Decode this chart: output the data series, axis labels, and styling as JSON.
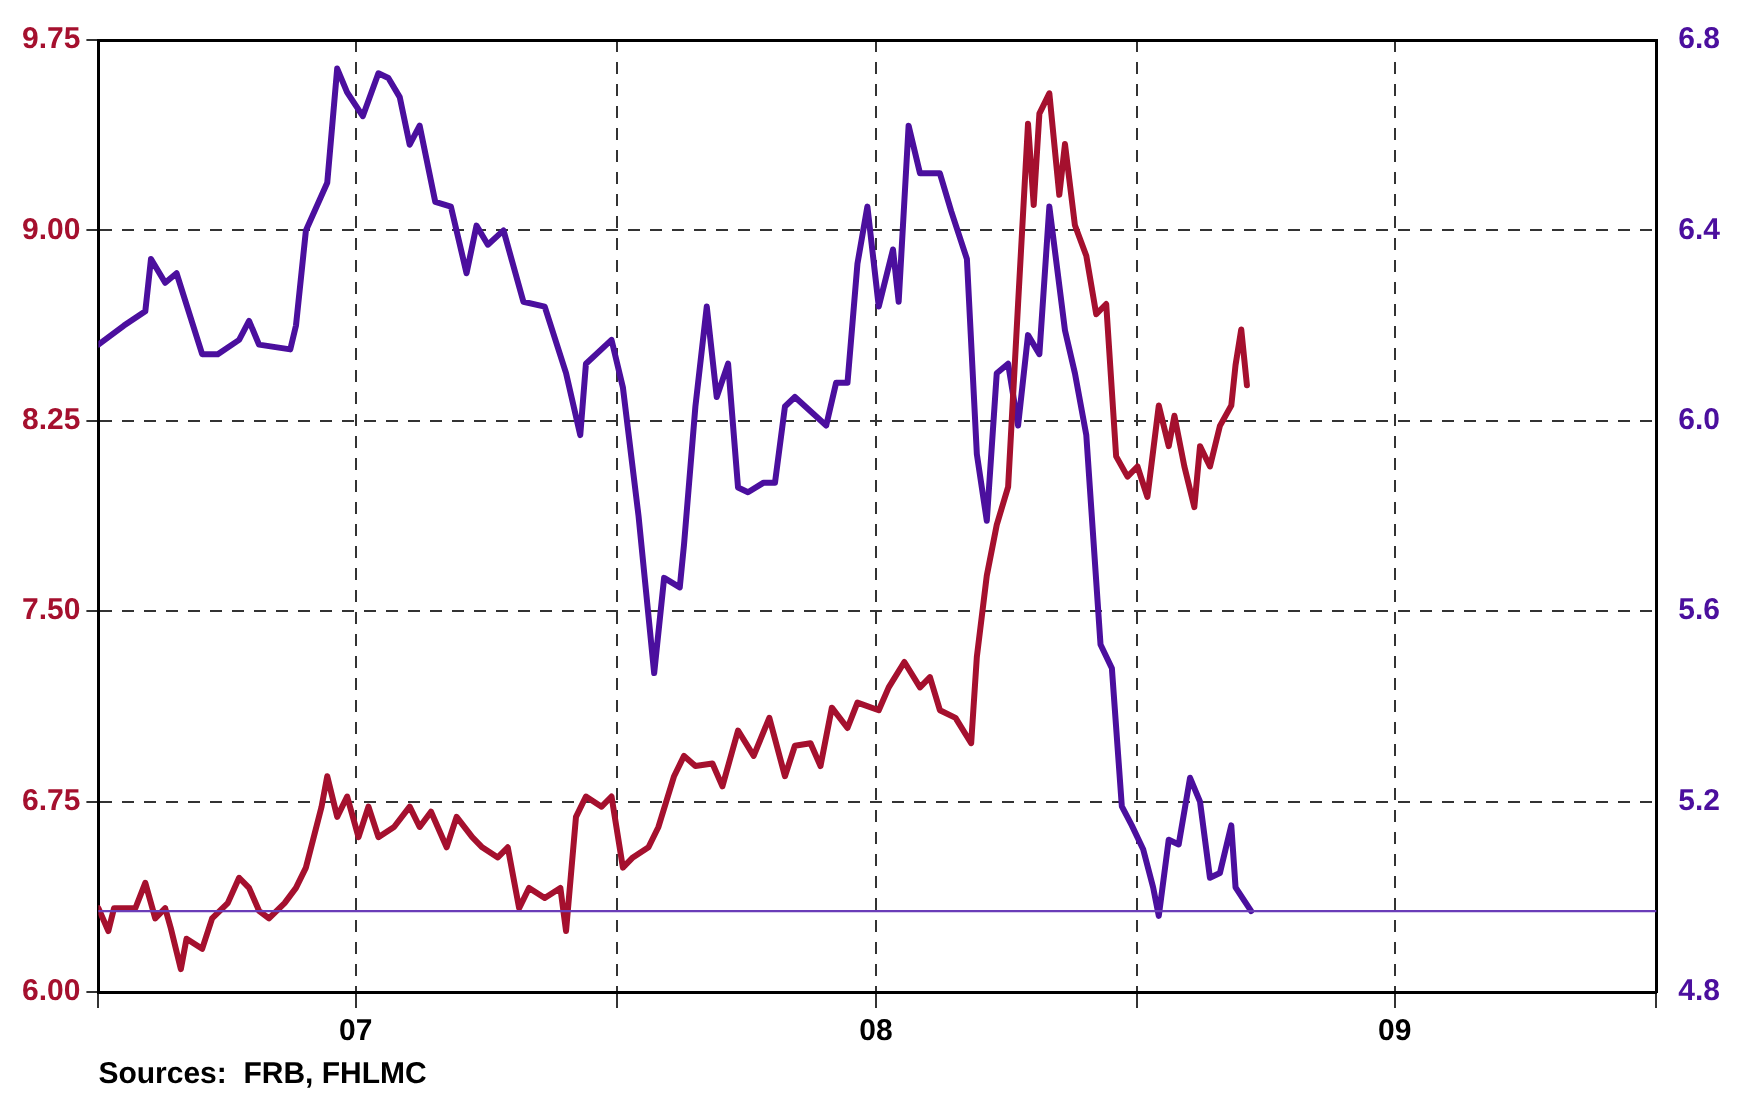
{
  "chart_data": {
    "type": "line",
    "xlim": [
      "2007-01-01",
      "2010-01-01"
    ],
    "xticks": [
      {
        "value": "2007-01-01",
        "label": null
      },
      {
        "value": "2007-07-01",
        "label": "07"
      },
      {
        "value": "2008-01-01",
        "label": null
      },
      {
        "value": "2008-07-01",
        "label": "08"
      },
      {
        "value": "2009-01-01",
        "label": null
      },
      {
        "value": "2009-07-01",
        "label": "09"
      },
      {
        "value": "2010-01-01",
        "label": null
      }
    ],
    "ylim": [
      6,
      9.75
    ],
    "yticks": [
      {
        "value": 6,
        "label": "6.00"
      },
      6.75,
      {
        "value": 7.5,
        "label": "7.50"
      },
      8.25,
      {
        "value": 9,
        "label": "9.00"
      },
      9.75
    ],
    "y2lim": [
      4.8,
      6.8
    ],
    "y2ticks": [
      4.8,
      5.2,
      5.6,
      {
        "value": 6,
        "label": "6.0"
      },
      6.4,
      6.8
    ],
    "series": [
      {
        "color": "#a5102e",
        "x": [
          "2007-01-01",
          "2007-01-08",
          "2007-01-12",
          "2007-01-27",
          "2007-02-03",
          "2007-02-10",
          "2007-02-17",
          "2007-02-21",
          "2007-02-28",
          "2007-03-04",
          "2007-03-15",
          "2007-03-22",
          "2007-04-02",
          "2007-04-10",
          "2007-04-17",
          "2007-04-24",
          "2007-05-01",
          "2007-05-12",
          "2007-05-20",
          "2007-05-27",
          "2007-06-07",
          "2007-06-11",
          "2007-06-18",
          "2007-06-25",
          "2007-07-03",
          "2007-07-10",
          "2007-07-17",
          "2007-07-28",
          "2007-08-08",
          "2007-08-15",
          "2007-08-23",
          "2007-09-03",
          "2007-09-10",
          "2007-09-21",
          "2007-09-28",
          "2007-10-09",
          "2007-10-16",
          "2007-10-24",
          "2007-10-31",
          "2007-11-11",
          "2007-11-22",
          "2007-11-26",
          "2007-12-03",
          "2007-12-10",
          "2007-12-21",
          "2007-12-28",
          "2008-01-05",
          "2008-01-12",
          "2008-01-23",
          "2008-01-30",
          "2008-02-10",
          "2008-02-17",
          "2008-02-25",
          "2008-03-08",
          "2008-03-15",
          "2008-03-26",
          "2008-04-06",
          "2008-04-17",
          "2008-04-28",
          "2008-05-05",
          "2008-05-16",
          "2008-05-23",
          "2008-05-31",
          "2008-06-11",
          "2008-06-18",
          "2008-07-03",
          "2008-07-10",
          "2008-07-21",
          "2008-08-01",
          "2008-08-08",
          "2008-08-15",
          "2008-08-26",
          "2008-09-06",
          "2008-09-10",
          "2008-09-17",
          "2008-09-24",
          "2008-10-02",
          "2008-10-09",
          "2008-10-16",
          "2008-10-20",
          "2008-10-24",
          "2008-10-31",
          "2008-11-07",
          "2008-11-11",
          "2008-11-18",
          "2008-11-26",
          "2008-12-03",
          "2008-12-10",
          "2008-12-17",
          "2008-12-25",
          "2009-01-01",
          "2009-01-08",
          "2009-01-16",
          "2009-01-23",
          "2009-01-27",
          "2009-02-03",
          "2009-02-10",
          "2009-02-14",
          "2009-02-21",
          "2009-02-28",
          "2009-03-08",
          "2009-03-11",
          "2009-03-15",
          "2009-03-19"
        ],
        "values": [
          6.33,
          6.24,
          6.33,
          6.33,
          6.43,
          6.29,
          6.33,
          6.25,
          6.09,
          6.21,
          6.17,
          6.29,
          6.35,
          6.45,
          6.41,
          6.32,
          6.29,
          6.35,
          6.41,
          6.49,
          6.73,
          6.85,
          6.69,
          6.77,
          6.61,
          6.73,
          6.61,
          6.65,
          6.73,
          6.65,
          6.71,
          6.57,
          6.69,
          6.61,
          6.57,
          6.53,
          6.57,
          6.33,
          6.41,
          6.37,
          6.41,
          6.24,
          6.69,
          6.77,
          6.73,
          6.77,
          6.49,
          6.53,
          6.57,
          6.65,
          6.85,
          6.93,
          6.89,
          6.9,
          6.81,
          7.03,
          6.93,
          7.08,
          6.85,
          6.97,
          6.98,
          6.89,
          7.12,
          7.04,
          7.14,
          7.11,
          7.2,
          7.3,
          7.2,
          7.24,
          7.11,
          7.08,
          6.98,
          7.32,
          7.64,
          7.84,
          7.99,
          8.71,
          9.42,
          9.1,
          9.46,
          9.54,
          9.14,
          9.34,
          9.02,
          8.9,
          8.67,
          8.71,
          8.11,
          8.03,
          8.07,
          7.95,
          8.31,
          8.15,
          8.27,
          8.07,
          7.91,
          8.15,
          8.07,
          8.23,
          8.31,
          8.47,
          8.61,
          8.39
        ]
      },
      {
        "color": "#4b0f9e",
        "axis": "y2",
        "x": [
          "2007-01-01",
          "2007-01-19",
          "2007-02-03",
          "2007-02-07",
          "2007-02-17",
          "2007-02-25",
          "2007-03-15",
          "2007-03-26",
          "2007-04-10",
          "2007-04-17",
          "2007-04-24",
          "2007-05-16",
          "2007-05-20",
          "2007-05-27",
          "2007-06-11",
          "2007-06-18",
          "2007-06-25",
          "2007-07-06",
          "2007-07-17",
          "2007-07-24",
          "2007-08-01",
          "2007-08-08",
          "2007-08-15",
          "2007-08-26",
          "2007-09-06",
          "2007-09-17",
          "2007-09-24",
          "2007-10-02",
          "2007-10-13",
          "2007-10-27",
          "2007-11-11",
          "2007-11-26",
          "2007-12-06",
          "2007-12-10",
          "2007-12-28",
          "2008-01-05",
          "2008-01-16",
          "2008-01-27",
          "2008-02-03",
          "2008-02-14",
          "2008-02-17",
          "2008-02-25",
          "2008-03-04",
          "2008-03-11",
          "2008-03-19",
          "2008-03-26",
          "2008-04-02",
          "2008-04-13",
          "2008-04-21",
          "2008-04-28",
          "2008-05-05",
          "2008-05-16",
          "2008-05-27",
          "2008-06-03",
          "2008-06-11",
          "2008-06-18",
          "2008-06-25",
          "2008-07-03",
          "2008-07-13",
          "2008-07-17",
          "2008-07-24",
          "2008-08-01",
          "2008-08-15",
          "2008-08-23",
          "2008-09-03",
          "2008-09-10",
          "2008-09-17",
          "2008-09-24",
          "2008-10-02",
          "2008-10-09",
          "2008-10-16",
          "2008-10-24",
          "2008-10-31",
          "2008-11-11",
          "2008-11-18",
          "2008-11-26",
          "2008-12-06",
          "2008-12-14",
          "2008-12-21",
          "2008-12-28",
          "2009-01-05",
          "2009-01-12",
          "2009-01-16",
          "2009-01-23",
          "2009-01-30",
          "2009-02-07",
          "2009-02-14",
          "2009-02-21",
          "2009-02-28",
          "2009-03-08",
          "2009-03-11",
          "2009-03-22"
        ],
        "values": [
          6.16,
          6.2,
          6.23,
          6.34,
          6.29,
          6.31,
          6.14,
          6.14,
          6.17,
          6.21,
          6.16,
          6.15,
          6.2,
          6.4,
          6.5,
          6.74,
          6.69,
          6.64,
          6.73,
          6.72,
          6.68,
          6.58,
          6.62,
          6.46,
          6.45,
          6.31,
          6.41,
          6.37,
          6.4,
          6.25,
          6.24,
          6.1,
          5.97,
          6.12,
          6.17,
          6.07,
          5.8,
          5.47,
          5.67,
          5.65,
          5.74,
          6.03,
          6.24,
          6.05,
          6.12,
          5.86,
          5.85,
          5.87,
          5.87,
          6.03,
          6.05,
          6.02,
          5.99,
          6.08,
          6.08,
          6.33,
          6.45,
          6.24,
          6.36,
          6.25,
          6.62,
          6.52,
          6.52,
          6.44,
          6.34,
          5.93,
          5.79,
          6.1,
          6.12,
          5.99,
          6.18,
          6.14,
          6.45,
          6.19,
          6.1,
          5.97,
          5.53,
          5.48,
          5.19,
          5.15,
          5.1,
          5.02,
          4.96,
          5.12,
          5.11,
          5.25,
          5.2,
          5.04,
          5.05,
          5.15,
          5.02,
          4.97
        ]
      }
    ],
    "ref_lines": [
      {
        "axis": "y2",
        "value": 4.97,
        "color": "#6a3db8"
      }
    ],
    "grid": true,
    "line_style": "solid",
    "marker": "none",
    "legend": false,
    "annotations": [
      "Sources:  FRB, FHLMC"
    ]
  }
}
